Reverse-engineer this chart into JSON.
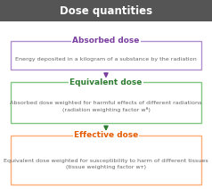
{
  "title": "Dose quantities",
  "title_bg": "#555555",
  "title_color": "#ffffff",
  "title_fontsize": 8.5,
  "boxes": [
    {
      "label": "Absorbed dose",
      "label_color": "#7b3fa0",
      "border_color": "#b08ecf",
      "text": "Energy deposited in a kilogram of a substance by the radiation",
      "text_color": "#666666",
      "arrow_color": "#7b3fa0",
      "text_lines": 1
    },
    {
      "label": "Equivalent dose",
      "label_color": "#2e7d32",
      "border_color": "#81c784",
      "text": "Absorbed dose weighted for harmful effects of different radiations\n(radiation weighting factor wᴬ)",
      "text_color": "#666666",
      "arrow_color": "#2e7d32",
      "text_lines": 2
    },
    {
      "label": "Effective dose",
      "label_color": "#e65c00",
      "border_color": "#ffab76",
      "text": "Equivalent dose weighted for susceptibility to harm of different tissues\n(tissue weighting factor wᴛ)",
      "text_color": "#666666",
      "text_lines": 2
    }
  ],
  "bg_color": "#ffffff"
}
